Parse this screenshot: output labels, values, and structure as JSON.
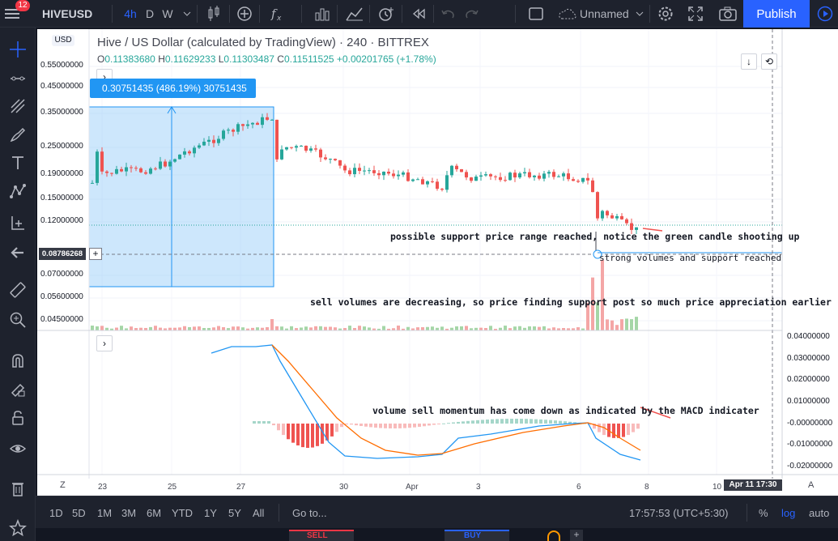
{
  "topbar": {
    "notification_count": "12",
    "symbol": "HIVEUSD",
    "intervals": [
      "4h",
      "D",
      "W"
    ],
    "layout_name": "Unnamed",
    "publish_label": "Publish"
  },
  "chart": {
    "title": "Hive / US Dollar (calculated by TradingView) · 240 · BITTREX",
    "currency_tag": "USD",
    "ohlc": {
      "o_label": "O",
      "o": "0.11383680",
      "h_label": "H",
      "h": "0.11629233",
      "l_label": "L",
      "l": "0.11303487",
      "c_label": "C",
      "c": "0.11511525",
      "change": "+0.00201765 (+1.78%)"
    },
    "measure_label": "0.30751435 (486.19%) 30751435",
    "crosshair_price": "0.08786268",
    "price_scale": [
      "0.55000000",
      "0.45000000",
      "0.35000000",
      "0.25000000",
      "0.19000000",
      "0.15000000",
      "0.12000000",
      "0.07000000",
      "0.05600000",
      "0.04500000"
    ],
    "macd_scale": [
      "0.04000000",
      "0.03000000",
      "0.02000000",
      "0.01000000",
      "-0.00000000",
      "-0.01000000",
      "-0.02000000"
    ],
    "time_scale": [
      "23",
      "25",
      "27",
      "30",
      "Apr",
      "3",
      "6",
      "8",
      "10"
    ],
    "time_tag": "Apr 11   17:30",
    "scale_mode_left": "Z",
    "scale_mode_right": "A",
    "annotations": {
      "support": "possible support price range reached, notice the green candle shooting up",
      "volumes": "strong volumes and support reached",
      "sell": "sell volumes are decreasing, so price finding support post so much price appreciation earlier",
      "macd": "volume sell momentum has come down as indicated by the MACD indicater"
    }
  },
  "bottombar": {
    "ranges": [
      "1D",
      "5D",
      "1M",
      "3M",
      "6M",
      "YTD",
      "1Y",
      "5Y",
      "All"
    ],
    "goto": "Go to...",
    "clock": "17:57:53 (UTC+5:30)",
    "percent": "%",
    "log": "log",
    "auto": "auto"
  },
  "panel": {
    "sell": "SELL",
    "buy": "BUY"
  },
  "colors": {
    "up": "#26a69a",
    "down": "#ef5350",
    "accent": "#2962ff",
    "measure": "#2196f3"
  }
}
